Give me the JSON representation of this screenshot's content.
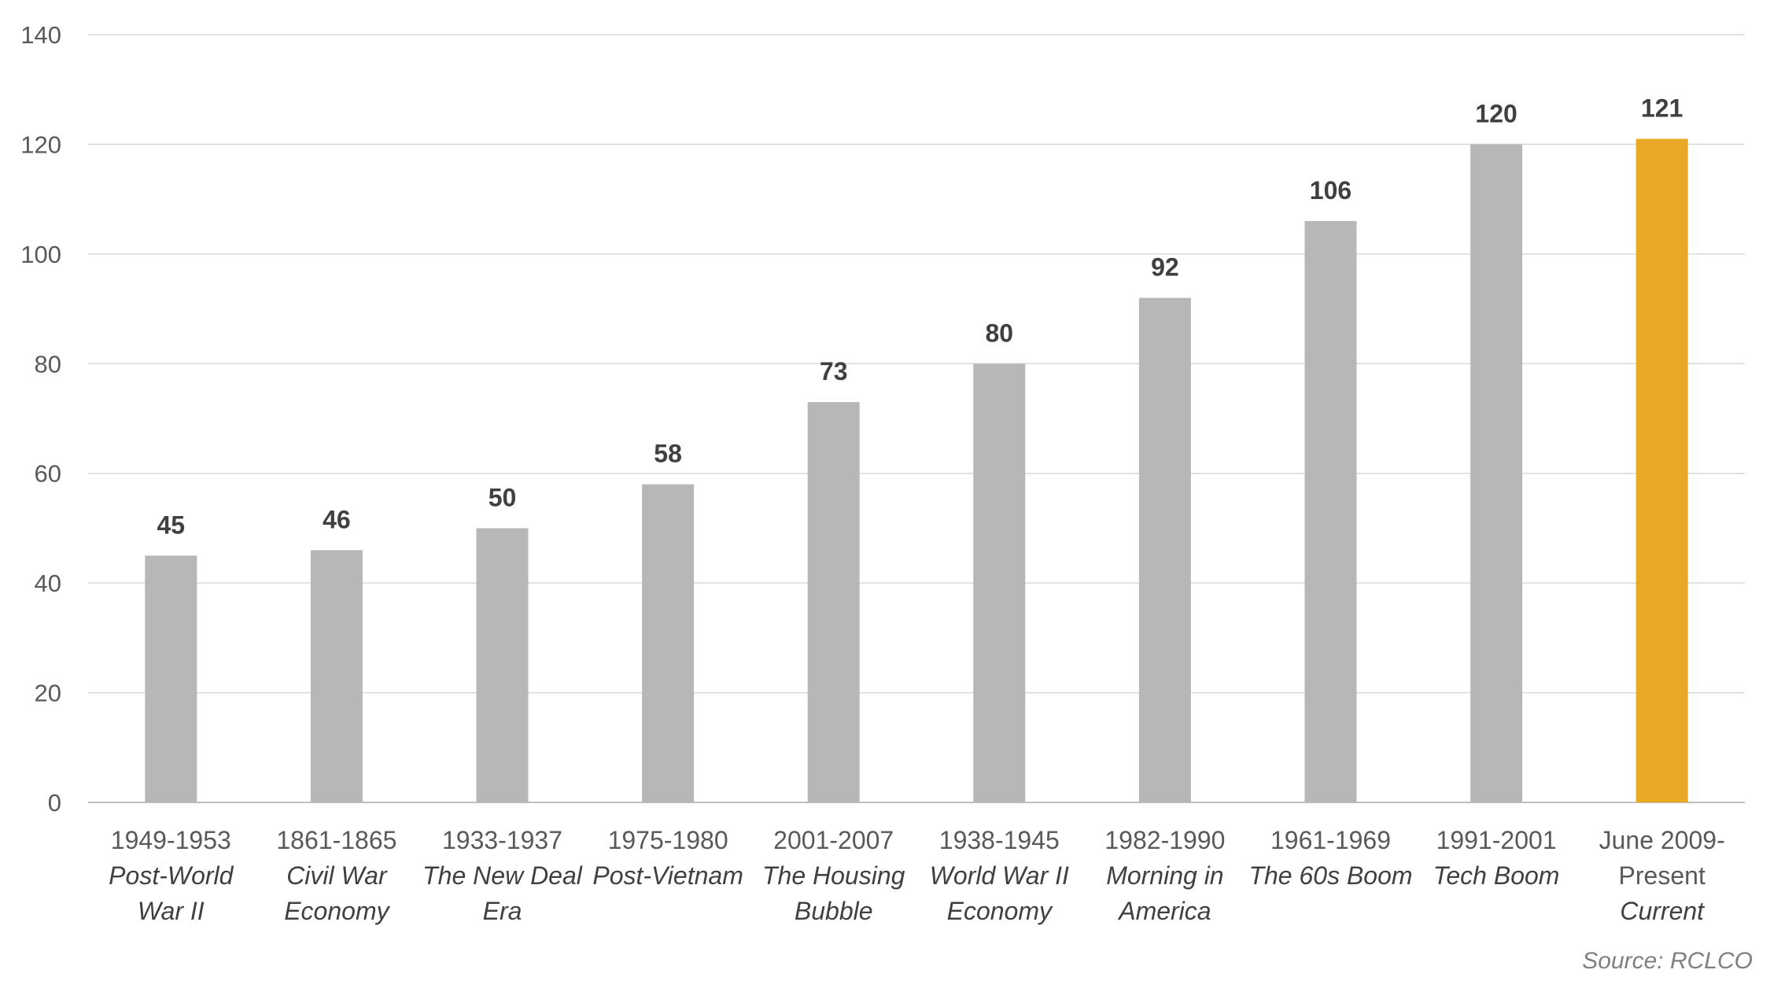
{
  "chart_data": {
    "type": "bar",
    "categories": [
      {
        "years": "1949-1953",
        "name_lines": [
          "Post-World",
          "War II"
        ]
      },
      {
        "years": "1861-1865",
        "name_lines": [
          "Civil War",
          "Economy"
        ]
      },
      {
        "years": "1933-1937",
        "name_lines": [
          "The New Deal",
          "Era"
        ]
      },
      {
        "years": "1975-1980",
        "name_lines": [
          "Post-Vietnam"
        ]
      },
      {
        "years": "2001-2007",
        "name_lines": [
          "The Housing",
          "Bubble"
        ]
      },
      {
        "years": "1938-1945",
        "name_lines": [
          "World War II",
          "Economy"
        ]
      },
      {
        "years": "1982-1990",
        "name_lines": [
          "Morning in",
          "America"
        ]
      },
      {
        "years": "1961-1969",
        "name_lines": [
          "The 60s Boom"
        ]
      },
      {
        "years": "1991-2001",
        "name_lines": [
          "Tech Boom"
        ]
      },
      {
        "years_lines": [
          "June 2009-",
          "Present"
        ],
        "name_lines": [
          "Current"
        ]
      }
    ],
    "values": [
      45,
      46,
      50,
      58,
      73,
      80,
      92,
      106,
      120,
      121
    ],
    "data_labels": [
      "45",
      "46",
      "50",
      "58",
      "73",
      "80",
      "92",
      "106",
      "120",
      "121"
    ],
    "highlight_index": 9,
    "colors": {
      "bar": "#b7b7b7",
      "highlight": "#e9a927",
      "grid": "#d9d9d9"
    },
    "ylim": [
      0,
      140
    ],
    "yticks": [
      0,
      20,
      40,
      60,
      80,
      100,
      120,
      140
    ],
    "grid": true,
    "legend": "none",
    "title": "",
    "xlabel": "",
    "ylabel": ""
  },
  "source_note": "Source: RCLCO"
}
